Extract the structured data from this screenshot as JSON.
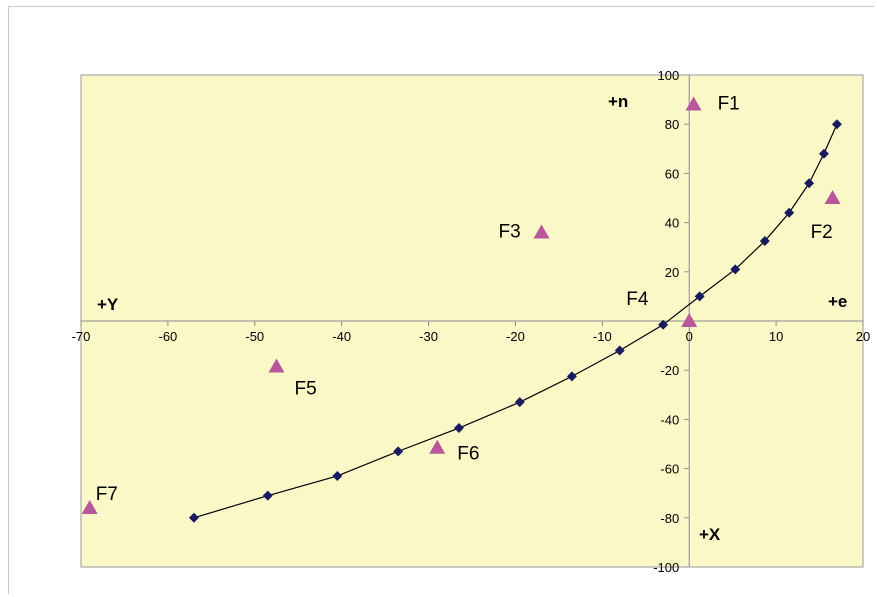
{
  "chart_data": {
    "type": "scatter",
    "title": "",
    "xlim": [
      -70,
      20
    ],
    "ylim": [
      -100,
      100
    ],
    "x_ticks": [
      -70,
      -60,
      -50,
      -40,
      -30,
      -20,
      -10,
      0,
      10,
      20
    ],
    "y_ticks": [
      -100,
      -80,
      -60,
      -40,
      -20,
      20,
      40,
      60,
      80,
      100
    ],
    "axis_labels": {
      "north": "+n",
      "east": "+e",
      "west": "+Y",
      "south": "+X"
    },
    "plot_background": "#fbf8c8",
    "grid": false,
    "series": [
      {
        "marker": "diamond",
        "color": "#1a1a5e",
        "line": true,
        "points": [
          {
            "x": -57,
            "y": -80
          },
          {
            "x": -48.5,
            "y": -71
          },
          {
            "x": -40.5,
            "y": -63
          },
          {
            "x": -33.5,
            "y": -53
          },
          {
            "x": -26.5,
            "y": -43.5
          },
          {
            "x": -19.5,
            "y": -33
          },
          {
            "x": -13.5,
            "y": -22.5
          },
          {
            "x": -8,
            "y": -12
          },
          {
            "x": -3,
            "y": -1.5
          },
          {
            "x": 1.2,
            "y": 10
          },
          {
            "x": 5.3,
            "y": 21
          },
          {
            "x": 8.7,
            "y": 32.5
          },
          {
            "x": 11.5,
            "y": 44
          },
          {
            "x": 13.8,
            "y": 56
          },
          {
            "x": 15.5,
            "y": 68
          },
          {
            "x": 17,
            "y": 80
          }
        ]
      },
      {
        "marker": "triangle",
        "color": "#b8579b",
        "line": false,
        "points": [
          {
            "label": "F1",
            "x": 0.5,
            "y": 88
          },
          {
            "label": "F2",
            "x": 16.5,
            "y": 50
          },
          {
            "label": "F3",
            "x": -17,
            "y": 36
          },
          {
            "label": "F4",
            "x": 0,
            "y": 0
          },
          {
            "label": "F5",
            "x": -47.5,
            "y": -18.5
          },
          {
            "label": "F6",
            "x": -29,
            "y": -51.5
          },
          {
            "label": "F7",
            "x": -69,
            "y": -76
          }
        ]
      }
    ]
  }
}
